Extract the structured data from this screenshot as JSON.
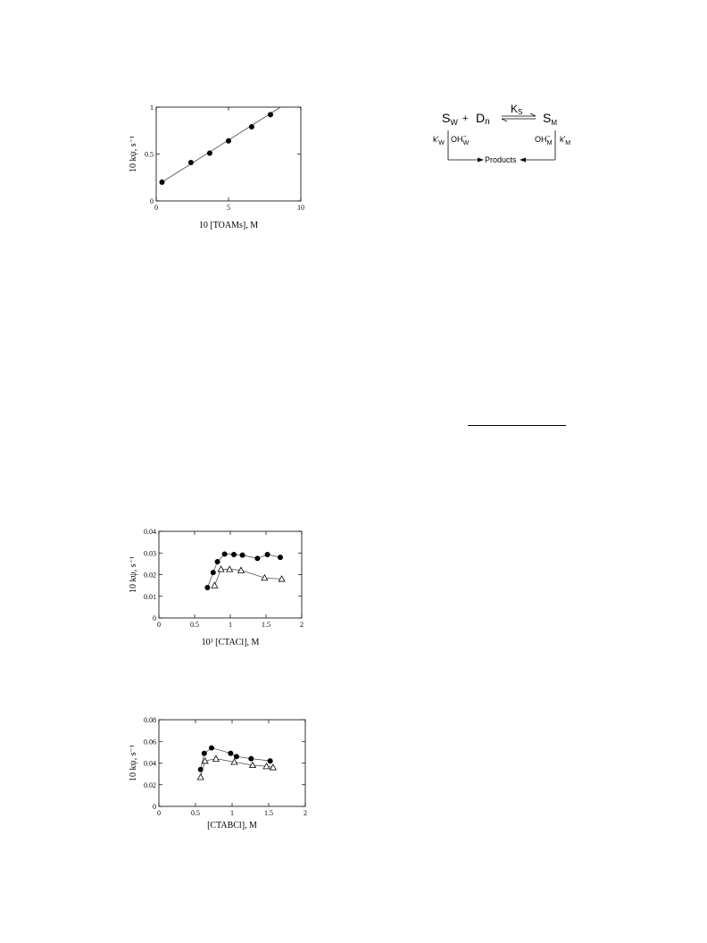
{
  "colors": {
    "ink": "#000000",
    "fit_line": "#555555",
    "background": "#ffffff"
  },
  "charts": [
    {
      "id": "chart1",
      "chart_data": {
        "type": "scatter",
        "title": "",
        "xlabel": "10 [TOAMs], M",
        "ylabel": "10 kψ, s⁻¹",
        "xlim": [
          0,
          10
        ],
        "ylim": [
          0,
          1
        ],
        "xticks": [
          0,
          5,
          10
        ],
        "yticks": [
          0,
          0.5,
          1
        ],
        "xtick_labels": [
          "0",
          "5",
          "10"
        ],
        "ytick_labels": [
          "0",
          "0.5",
          "1"
        ],
        "grid": false,
        "series": [
          {
            "marker": "filled-circle",
            "line": "linear-fit-extended",
            "x": [
              0.4,
              2.4,
              3.7,
              5.0,
              6.6,
              7.9
            ],
            "y": [
              0.2,
              0.41,
              0.51,
              0.64,
              0.79,
              0.92
            ]
          }
        ],
        "fit_line": {
          "x": [
            0.4,
            8.6
          ],
          "y": [
            0.2,
            1.0
          ]
        }
      }
    },
    {
      "id": "chart2",
      "chart_data": {
        "type": "scatter",
        "title": "",
        "xlabel": "10³ [CTACl], M",
        "ylabel": "10 kψ, s⁻¹",
        "xlim": [
          0,
          2
        ],
        "ylim": [
          0,
          0.04
        ],
        "xticks": [
          0,
          0.5,
          1,
          1.5,
          2
        ],
        "yticks": [
          0,
          0.01,
          0.02,
          0.03,
          0.04
        ],
        "xtick_labels": [
          "0",
          "0.5",
          "1",
          "1.5",
          "2"
        ],
        "ytick_labels": [
          "0",
          "0.01",
          "0.02",
          "0.03",
          "0.04"
        ],
        "grid": false,
        "series": [
          {
            "marker": "filled-circle",
            "line": "connected",
            "x": [
              0.68,
              0.76,
              0.82,
              0.92,
              1.05,
              1.17,
              1.38,
              1.52,
              1.7
            ],
            "y": [
              0.014,
              0.021,
              0.026,
              0.0295,
              0.0293,
              0.029,
              0.0275,
              0.0293,
              0.028
            ]
          },
          {
            "marker": "open-triangle",
            "line": "connected",
            "x": [
              0.78,
              0.87,
              0.99,
              1.15,
              1.48,
              1.72
            ],
            "y": [
              0.015,
              0.0225,
              0.0225,
              0.022,
              0.0185,
              0.018
            ]
          }
        ]
      }
    },
    {
      "id": "chart3",
      "chart_data": {
        "type": "scatter",
        "title": "",
        "xlabel": "[CTABCl], M",
        "ylabel": "10 kψ, s⁻¹",
        "xlim": [
          0,
          2
        ],
        "ylim": [
          0,
          0.08
        ],
        "xticks": [
          0,
          0.5,
          1,
          1.5,
          2
        ],
        "yticks": [
          0,
          0.02,
          0.04,
          0.06,
          0.08
        ],
        "xtick_labels": [
          "0",
          "0.5",
          "1",
          "1.5",
          "2"
        ],
        "ytick_labels": [
          "0",
          "0.02",
          "0.04",
          "0.06",
          "0.08"
        ],
        "grid": false,
        "series": [
          {
            "marker": "filled-circle",
            "line": "connected",
            "x": [
              0.57,
              0.62,
              0.72,
              0.98,
              1.06,
              1.26,
              1.52
            ],
            "y": [
              0.034,
              0.049,
              0.054,
              0.049,
              0.046,
              0.044,
              0.042
            ]
          },
          {
            "marker": "open-triangle",
            "line": "connected",
            "x": [
              0.57,
              0.63,
              0.78,
              1.03,
              1.28,
              1.47,
              1.56
            ],
            "y": [
              0.027,
              0.042,
              0.044,
              0.041,
              0.038,
              0.037,
              0.036
            ]
          }
        ]
      }
    }
  ],
  "scheme": {
    "sw": "S",
    "sw_sub": "W",
    "plus": "+",
    "dn": "D",
    "dn_sub": "n",
    "ks": "K",
    "ks_sub": "S",
    "sm": "S",
    "sm_sub": "M",
    "kw": "k'",
    "kw_sub": "W",
    "ohw": "OH",
    "ohw_sup": "−",
    "ohw_sub": "W",
    "ohm": "OH",
    "ohm_sup": "−",
    "ohm_sub": "M",
    "km": "k'",
    "km_sub": "M",
    "products": "Products"
  }
}
